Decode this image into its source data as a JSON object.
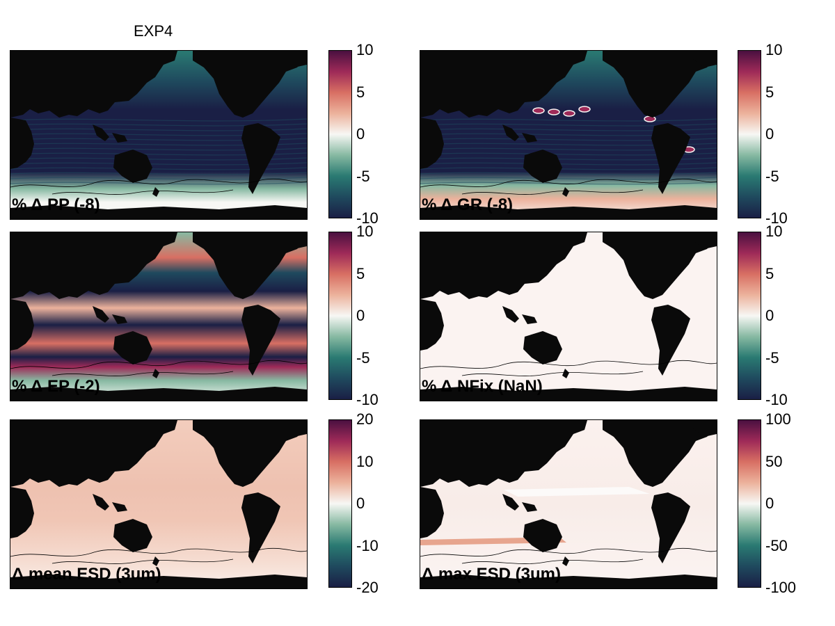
{
  "figure_title": "EXP4",
  "colors": {
    "cmap": [
      "#1a1f45",
      "#1f4a5e",
      "#2a7a72",
      "#87b9a2",
      "#f7f7f4",
      "#ecb29c",
      "#d86f63",
      "#9e2a58",
      "#4a1040"
    ],
    "land": "#0a0a0a",
    "contour": "#000000"
  },
  "panels": [
    {
      "id": "pp",
      "label": "% Δ PP (-8)",
      "colorbar_ticks": [
        "10",
        "5",
        "0",
        "-5",
        "-10"
      ],
      "clim": [
        -10,
        10
      ],
      "pattern": "negative-mostly"
    },
    {
      "id": "gr",
      "label": "% Δ GR (-8)",
      "colorbar_ticks": [
        "10",
        "5",
        "0",
        "-5",
        "-10"
      ],
      "clim": [
        -10,
        10
      ],
      "pattern": "negative-with-hotspots"
    },
    {
      "id": "ep",
      "label": "% Δ EP (-2)",
      "colorbar_ticks": [
        "10",
        "5",
        "0",
        "-5",
        "-10"
      ],
      "clim": [
        -10,
        10
      ],
      "pattern": "mixed-bands"
    },
    {
      "id": "nfix",
      "label": "% Δ NFix (NaN)",
      "colorbar_ticks": [
        "10",
        "5",
        "0",
        "-5",
        "-10"
      ],
      "clim": [
        -10,
        10
      ],
      "pattern": "zero"
    },
    {
      "id": "mesd",
      "label": "Δ mean ESD (3um)",
      "colorbar_ticks": [
        "20",
        "10",
        "0",
        "-10",
        "-20"
      ],
      "clim": [
        -20,
        20
      ],
      "pattern": "slight-positive"
    },
    {
      "id": "xesd",
      "label": "Δ max ESD (3um)",
      "colorbar_ticks": [
        "100",
        "50",
        "0",
        "-50",
        "-100"
      ],
      "clim": [
        -100,
        100
      ],
      "pattern": "near-zero-streak"
    }
  ]
}
